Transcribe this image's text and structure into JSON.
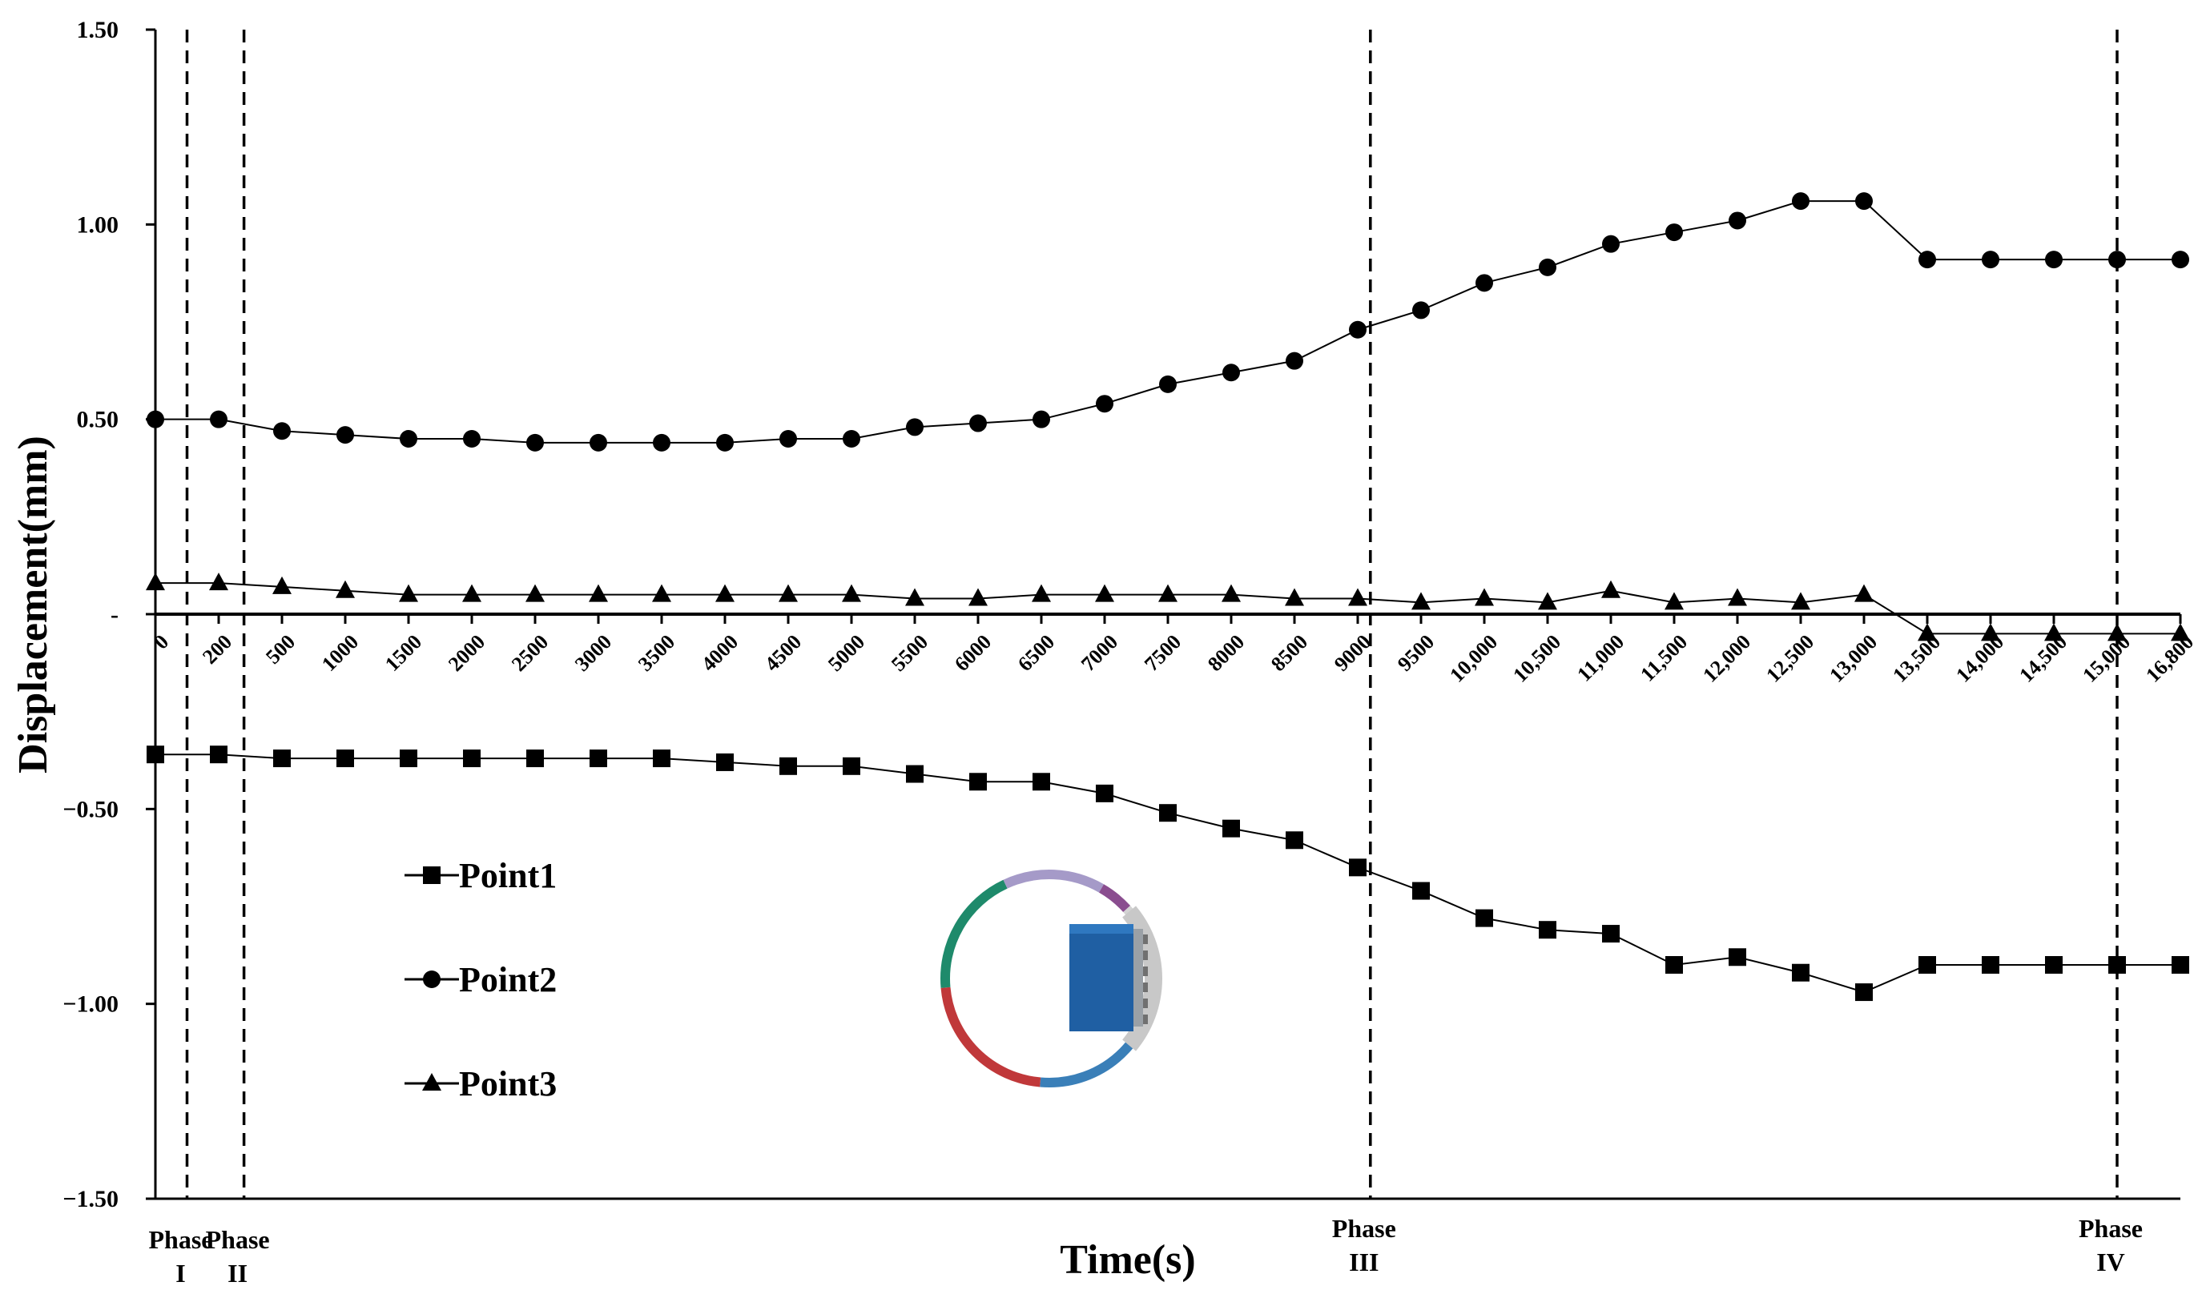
{
  "chart_data": {
    "type": "line",
    "title": "",
    "xlabel": "Time(s)",
    "ylabel": "Displacement(mm)",
    "ylim": [
      -1.5,
      1.5
    ],
    "y_ticks": [
      {
        "value": 1.5,
        "label": "1.50"
      },
      {
        "value": 1.0,
        "label": "1.00"
      },
      {
        "value": 0.5,
        "label": "0.50"
      },
      {
        "value": 0.0,
        "label": "-"
      },
      {
        "value": -0.5,
        "label": "−0.50"
      },
      {
        "value": -1.0,
        "label": "−1.00"
      },
      {
        "value": -1.5,
        "label": "−1.50"
      }
    ],
    "categories": [
      "0",
      "200",
      "500",
      "1000",
      "1500",
      "2000",
      "2500",
      "3000",
      "3500",
      "4000",
      "4500",
      "5000",
      "5500",
      "6000",
      "6500",
      "7000",
      "7500",
      "8000",
      "8500",
      "9000",
      "9500",
      "10,000",
      "10,500",
      "11,000",
      "11,500",
      "12,000",
      "12,500",
      "13,000",
      "13,500",
      "14,000",
      "14,500",
      "15,000",
      "16,800"
    ],
    "series": [
      {
        "name": "Point1",
        "marker": "square",
        "values": [
          -0.36,
          -0.36,
          -0.37,
          -0.37,
          -0.37,
          -0.37,
          -0.37,
          -0.37,
          -0.37,
          -0.38,
          -0.39,
          -0.39,
          -0.41,
          -0.43,
          -0.43,
          -0.46,
          -0.51,
          -0.55,
          -0.58,
          -0.65,
          -0.71,
          -0.78,
          -0.81,
          -0.82,
          -0.9,
          -0.88,
          -0.92,
          -0.97,
          -0.9,
          -0.9,
          -0.9,
          -0.9,
          -0.9
        ]
      },
      {
        "name": "Point2",
        "marker": "circle",
        "values": [
          0.5,
          0.5,
          0.47,
          0.46,
          0.45,
          0.45,
          0.44,
          0.44,
          0.44,
          0.44,
          0.45,
          0.45,
          0.48,
          0.49,
          0.5,
          0.54,
          0.59,
          0.62,
          0.65,
          0.73,
          0.78,
          0.85,
          0.89,
          0.95,
          0.98,
          1.01,
          1.06,
          1.06,
          0.91,
          0.91,
          0.91,
          0.91,
          0.91
        ]
      },
      {
        "name": "Point3",
        "marker": "triangle",
        "values": [
          0.08,
          0.08,
          0.07,
          0.06,
          0.05,
          0.05,
          0.05,
          0.05,
          0.05,
          0.05,
          0.05,
          0.05,
          0.04,
          0.04,
          0.05,
          0.05,
          0.05,
          0.05,
          0.04,
          0.04,
          0.03,
          0.04,
          0.03,
          0.06,
          0.03,
          0.04,
          0.03,
          0.05,
          -0.05,
          -0.05,
          -0.05,
          -0.05,
          -0.05
        ]
      }
    ],
    "phases": [
      {
        "name": "Phase",
        "numeral": "I"
      },
      {
        "name": "Phase",
        "numeral": "II"
      },
      {
        "name": "Phase",
        "numeral": "III"
      },
      {
        "name": "Phase",
        "numeral": "IV"
      }
    ],
    "phase_positions_index": [
      0.5,
      1.4,
      19.2,
      31.0
    ],
    "grid": false,
    "legend_position": "lower-left",
    "inset": {
      "ring_colors": [
        "#3a7fb8",
        "#c0383a",
        "#1e8a6b",
        "#a59ac8",
        "#8a4d8f",
        "#d3d3d3"
      ],
      "block_color": "#1f5fa3"
    }
  }
}
